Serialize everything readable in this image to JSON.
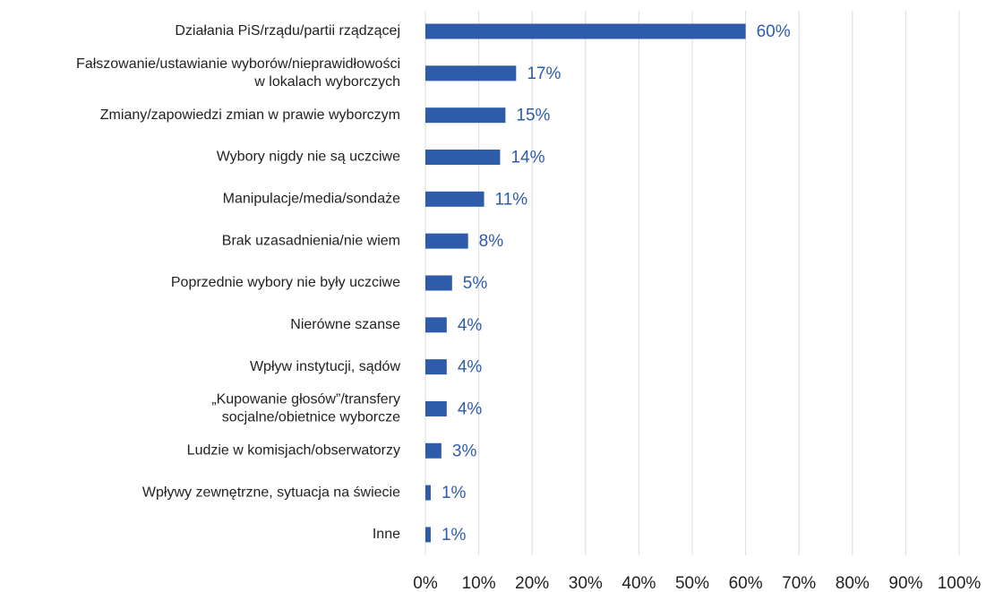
{
  "chart_data": {
    "type": "bar",
    "orientation": "horizontal",
    "categories": [
      "Działania PiS/rządu/partii rządzącej",
      "Fałszowanie/ustawianie wyborów/nieprawidłowości\nw lokalach wyborczych",
      "Zmiany/zapowiedzi zmian w prawie wyborczym",
      "Wybory nigdy nie są uczciwe",
      "Manipulacje/media/sondaże",
      "Brak uzasadnienia/nie wiem",
      "Poprzednie wybory nie były uczciwe",
      "Nierówne szanse",
      "Wpływ instytucji, sądów",
      "„Kupowanie głosów”/transfery\nsocjalne/obietnice wyborcze",
      "Ludzie w komisjach/obserwatorzy",
      "Wpływy zewnętrzne, sytuacja na świecie",
      "Inne"
    ],
    "values": [
      60,
      17,
      15,
      14,
      11,
      8,
      5,
      4,
      4,
      4,
      3,
      1,
      1
    ],
    "value_labels": [
      "60%",
      "17%",
      "15%",
      "14%",
      "11%",
      "8%",
      "5%",
      "4%",
      "4%",
      "4%",
      "3%",
      "1%",
      "1%"
    ],
    "color": "#2e5caa",
    "xlim": [
      0,
      100
    ],
    "xticks": [
      {
        "value": 0,
        "label": "0%"
      },
      {
        "value": 10,
        "label": "10%"
      },
      {
        "value": 20,
        "label": "20%"
      },
      {
        "value": 30,
        "label": "30%"
      },
      {
        "value": 40,
        "label": "40%"
      },
      {
        "value": 50,
        "label": "50%"
      },
      {
        "value": 60,
        "label": "60%"
      },
      {
        "value": 70,
        "label": "70%"
      },
      {
        "value": 80,
        "label": "80%"
      },
      {
        "value": 90,
        "label": "90%"
      },
      {
        "value": 100,
        "label": "100%"
      }
    ],
    "grid": true
  }
}
